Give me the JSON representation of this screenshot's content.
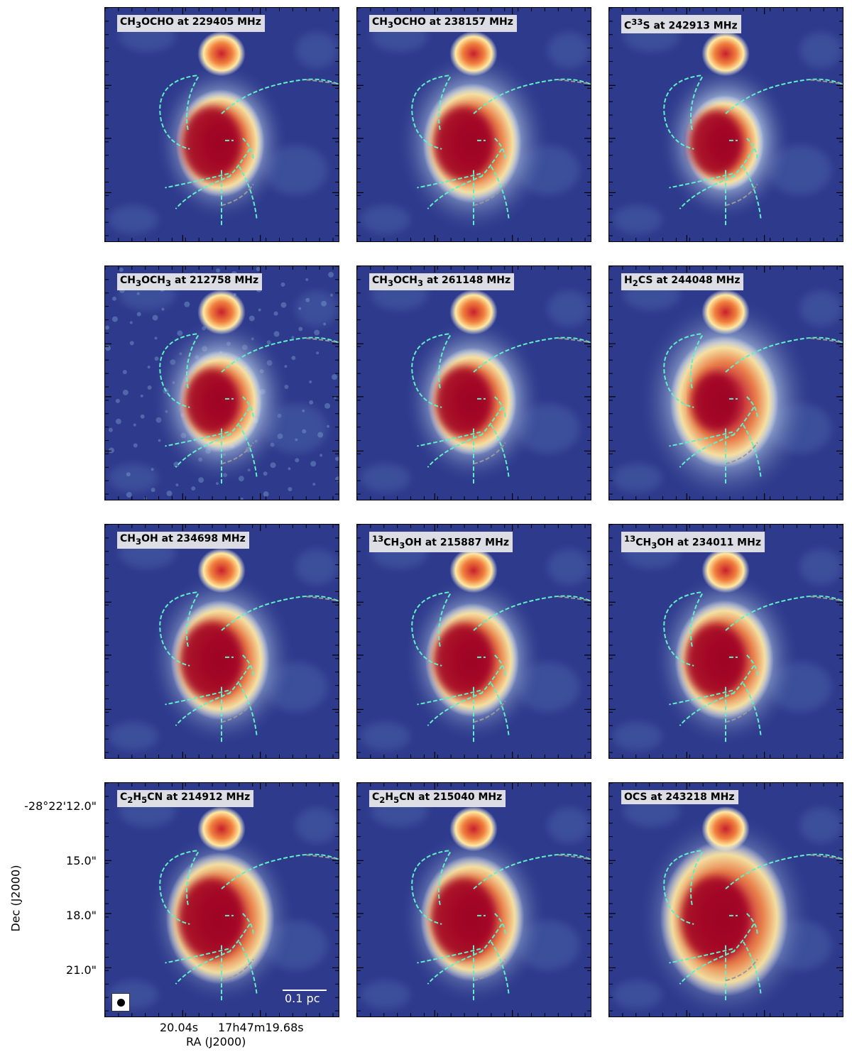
{
  "panels": [
    {
      "label_html": "CH<sub>3</sub>OCHO at 229405 MHz"
    },
    {
      "label_html": "CH<sub>3</sub>OCHO at 238157 MHz"
    },
    {
      "label_html": "C<sup>33</sup>S at 242913 MHz"
    },
    {
      "label_html": "CH<sub>3</sub>OCH<sub>3</sub> at 212758 MHz"
    },
    {
      "label_html": "CH<sub>3</sub>OCH<sub>3</sub> at 261148 MHz"
    },
    {
      "label_html": "H<sub>2</sub>CS at 244048 MHz"
    },
    {
      "label_html": "CH<sub>3</sub>OH at 234698 MHz"
    },
    {
      "label_html": "<sup>13</sup>CH<sub>3</sub>OH at 215887 MHz"
    },
    {
      "label_html": "<sup>13</sup>CH<sub>3</sub>OH at 234011 MHz"
    },
    {
      "label_html": "C<sub>2</sub>H<sub>5</sub>CN at 214912 MHz"
    },
    {
      "label_html": "C<sub>2</sub>H<sub>5</sub>CN at 215040 MHz"
    },
    {
      "label_html": "OCS at 243218 MHz"
    }
  ],
  "axes": {
    "dec_label": "Dec (J2000)",
    "ra_label": "RA (J2000)",
    "dec_ticks": [
      "-28°22'12.0\"",
      "15.0\"",
      "18.0\"",
      "21.0\""
    ],
    "ra_ticks": [
      "20.04s",
      "17h47m19.68s"
    ]
  },
  "scale_bar": {
    "label": "0.1 pc"
  },
  "colors": {
    "background": "#2e3a8c",
    "filament": "#5ff0c8",
    "filament_tail": "#999999",
    "peak": "#9e0022"
  }
}
